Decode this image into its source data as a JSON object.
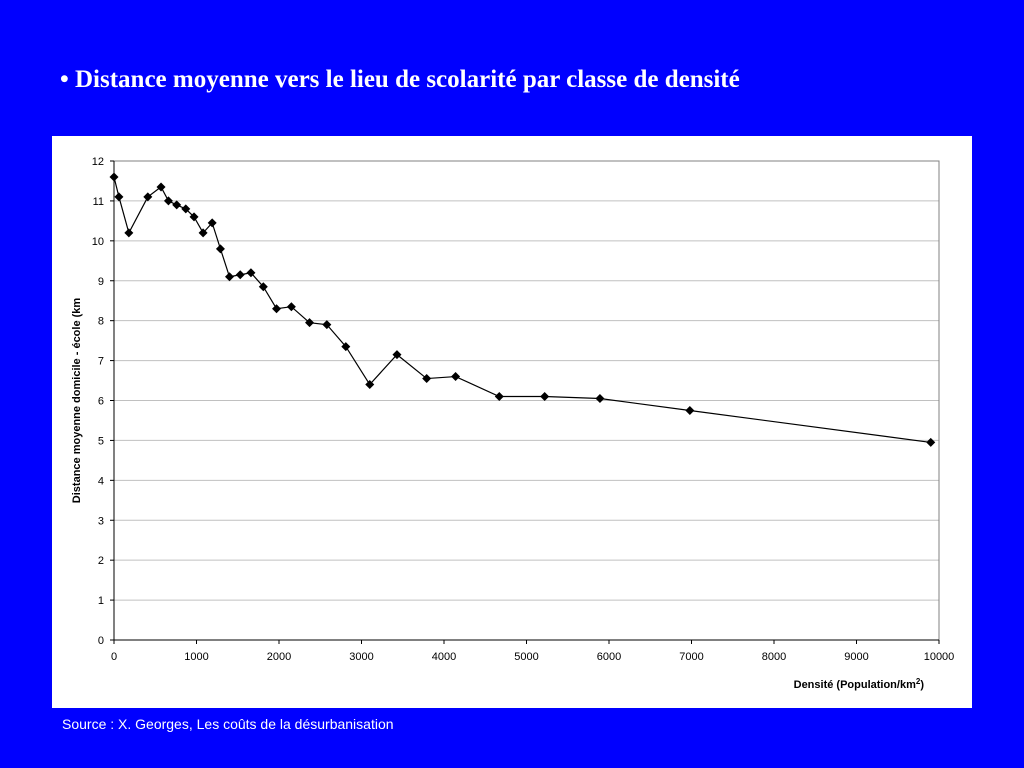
{
  "slide": {
    "title": "• Distance moyenne vers le lieu de scolarité par classe de densité",
    "source": "Source : X. Georges, Les coûts de la désurbanisation"
  },
  "colors": {
    "background": "#0000ff",
    "panel": "#ffffff",
    "series": "#000000",
    "grid": "#c0c0c0"
  },
  "chart_data": {
    "type": "line",
    "title": "",
    "xlabel": "Densité (Population/km",
    "xlabel_superscript": "2",
    "xlabel_suffix": ")",
    "ylabel": "Distance moyenne domicile - école (km",
    "xlim": [
      0,
      10000
    ],
    "ylim": [
      0,
      12
    ],
    "x_ticks": [
      "0",
      "1000",
      "2000",
      "3000",
      "4000",
      "5000",
      "6000",
      "7000",
      "8000",
      "9000",
      "10000"
    ],
    "y_ticks": [
      "0",
      "1",
      "2",
      "3",
      "4",
      "5",
      "6",
      "7",
      "8",
      "9",
      "10",
      "11",
      "12"
    ],
    "grid": true,
    "legend": "none",
    "marker": "diamond",
    "series": [
      {
        "x": [
          0,
          60,
          180,
          410,
          570,
          660,
          760,
          870,
          970,
          1080,
          1190,
          1290,
          1400,
          1530,
          1660,
          1810,
          1970,
          2150,
          2370,
          2580,
          2810,
          3100,
          3430,
          3790,
          4140,
          4670,
          5220,
          5890,
          6980,
          9900
        ],
        "y": [
          11.6,
          11.1,
          10.2,
          11.1,
          11.35,
          11.0,
          10.9,
          10.8,
          10.6,
          10.2,
          10.45,
          9.8,
          9.1,
          9.15,
          9.2,
          8.85,
          8.3,
          8.35,
          7.95,
          7.9,
          7.35,
          6.4,
          7.15,
          6.55,
          6.6,
          6.1,
          6.1,
          6.05,
          5.75,
          4.95
        ]
      }
    ]
  }
}
